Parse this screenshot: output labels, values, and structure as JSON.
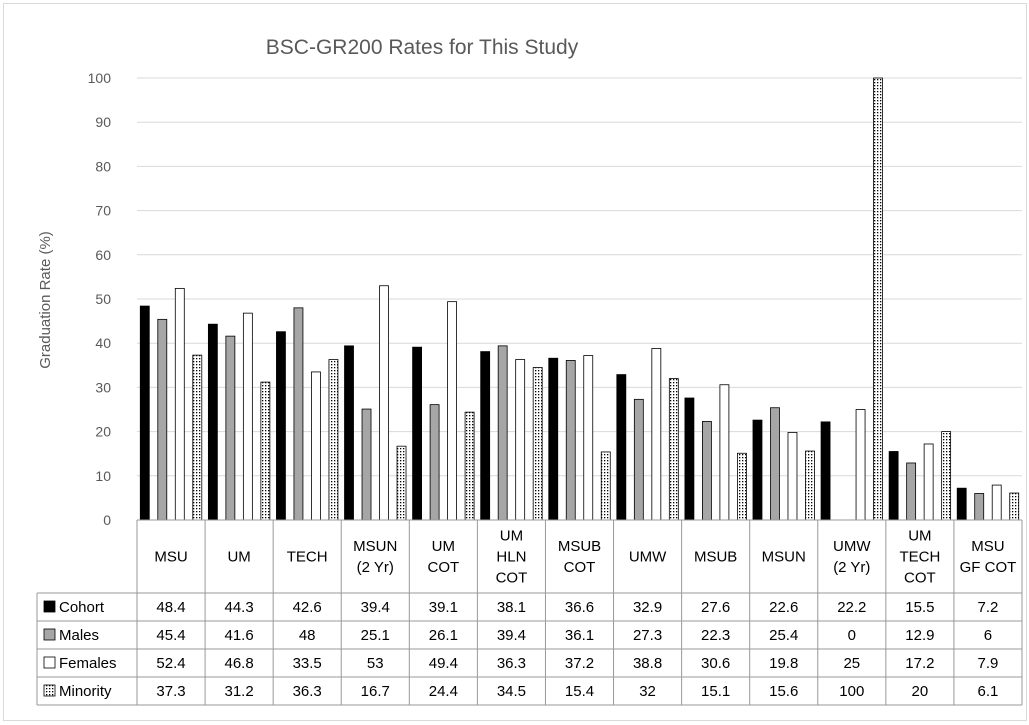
{
  "chart_data": {
    "type": "bar",
    "title": "BSC-GR200 Rates for This Study",
    "ylabel": "Graduation Rate (%)",
    "xlabel": "",
    "ylim": [
      0,
      100
    ],
    "yticks": [
      0,
      10,
      20,
      30,
      40,
      50,
      60,
      70,
      80,
      90,
      100
    ],
    "grid": true,
    "legend": "data-table-left",
    "categories": [
      [
        "MSU"
      ],
      [
        "UM"
      ],
      [
        "TECH"
      ],
      [
        "MSUN",
        "(2 Yr)"
      ],
      [
        "UM",
        "COT"
      ],
      [
        "UM",
        "HLN",
        "COT"
      ],
      [
        "MSUB",
        "COT"
      ],
      [
        "UMW"
      ],
      [
        "MSUB"
      ],
      [
        "MSUN"
      ],
      [
        "UMW",
        "(2 Yr)"
      ],
      [
        "UM",
        "TECH",
        "COT"
      ],
      [
        "MSU",
        "GF COT"
      ]
    ],
    "series": [
      {
        "name": "Cohort",
        "fill": "#000000",
        "pattern": "solid",
        "values": [
          48.4,
          44.3,
          42.6,
          39.4,
          39.1,
          38.1,
          36.6,
          32.9,
          27.6,
          22.6,
          22.2,
          15.5,
          7.2
        ]
      },
      {
        "name": "Males",
        "fill": "#a6a6a6",
        "pattern": "solid",
        "values": [
          45.4,
          41.6,
          48,
          25.1,
          26.1,
          39.4,
          36.1,
          27.3,
          22.3,
          25.4,
          0,
          12.9,
          6
        ]
      },
      {
        "name": "Females",
        "fill": "#ffffff",
        "pattern": "solid",
        "values": [
          52.4,
          46.8,
          33.5,
          53,
          49.4,
          36.3,
          37.2,
          38.8,
          30.6,
          19.8,
          25,
          17.2,
          7.9
        ]
      },
      {
        "name": "Minority",
        "fill": "#ffffff",
        "pattern": "dots",
        "values": [
          37.3,
          31.2,
          36.3,
          16.7,
          24.4,
          34.5,
          15.4,
          32,
          15.1,
          15.6,
          100,
          20,
          6.1
        ]
      }
    ]
  }
}
